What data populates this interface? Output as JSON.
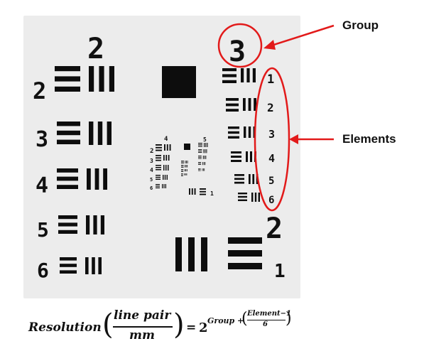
{
  "callouts": {
    "group_label": "Group",
    "elements_label": "Elements",
    "accent_color": "#e21a1a"
  },
  "target": {
    "large_group_numbers": [
      "2",
      "3",
      "2"
    ],
    "left_element_numbers": [
      "2",
      "3",
      "4",
      "5",
      "6"
    ],
    "right_element_numbers": [
      "1",
      "2",
      "3",
      "4",
      "5",
      "6"
    ],
    "bottom_element_number": "1",
    "inner_small_numbers": {
      "top": [
        "4",
        "5"
      ],
      "left": [
        "2",
        "3",
        "4",
        "5",
        "6"
      ],
      "bottom_right": "1"
    }
  },
  "formula": {
    "lhs": "Resolution",
    "fraction_numerator": "line pair",
    "fraction_denominator": "mm",
    "equals": "=",
    "base": "2",
    "exponent_prefix": "Group +",
    "exponent_numerator": "Element−1",
    "exponent_denominator": "6"
  }
}
